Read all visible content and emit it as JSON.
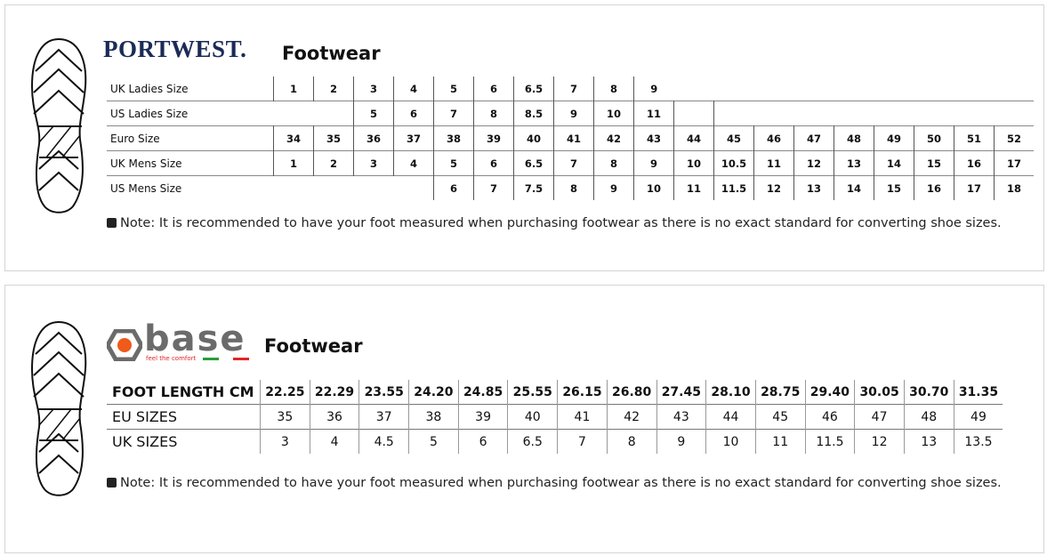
{
  "portwest": {
    "brand": "PORTWEST.",
    "title": "Footwear",
    "rows": [
      {
        "label": "UK Ladies Size",
        "values": [
          "1",
          "2",
          "3",
          "4",
          "5",
          "6",
          "6.5",
          "7",
          "8",
          "9",
          "",
          "",
          "",
          "",
          "",
          "",
          "",
          "",
          ""
        ]
      },
      {
        "label": "US Ladies Size",
        "values": [
          "",
          "",
          "5",
          "6",
          "7",
          "8",
          "8.5",
          "9",
          "10",
          "11",
          "",
          "",
          "",
          "",
          "",
          "",
          "",
          "",
          ""
        ]
      },
      {
        "label": "Euro Size",
        "values": [
          "34",
          "35",
          "36",
          "37",
          "38",
          "39",
          "40",
          "41",
          "42",
          "43",
          "44",
          "45",
          "46",
          "47",
          "48",
          "49",
          "50",
          "51",
          "52"
        ]
      },
      {
        "label": "UK Mens Size",
        "values": [
          "1",
          "2",
          "3",
          "4",
          "5",
          "6",
          "6.5",
          "7",
          "8",
          "9",
          "10",
          "10.5",
          "11",
          "12",
          "13",
          "14",
          "15",
          "16",
          "17"
        ]
      },
      {
        "label": "US Mens Size",
        "values": [
          "",
          "",
          "",
          "",
          "6",
          "7",
          "7.5",
          "8",
          "9",
          "10",
          "11",
          "11.5",
          "12",
          "13",
          "14",
          "15",
          "16",
          "17",
          "18"
        ]
      }
    ],
    "note": "Note: It is recommended to have your foot measured when purchasing footwear as there is no exact standard for converting shoe sizes."
  },
  "base": {
    "brand": "base",
    "tagline": "feel the comfort",
    "title": "Footwear",
    "rows": [
      {
        "label": "FOOT LENGTH CM",
        "values": [
          "22.25",
          "22.29",
          "23.55",
          "24.20",
          "24.85",
          "25.55",
          "26.15",
          "26.80",
          "27.45",
          "28.10",
          "28.75",
          "29.40",
          "30.05",
          "30.70",
          "31.35"
        ]
      },
      {
        "label": "EU SIZES",
        "values": [
          "35",
          "36",
          "37",
          "38",
          "39",
          "40",
          "41",
          "42",
          "43",
          "44",
          "45",
          "46",
          "47",
          "48",
          "49"
        ]
      },
      {
        "label": "UK SIZES",
        "values": [
          "3",
          "4",
          "4.5",
          "5",
          "6",
          "6.5",
          "7",
          "8",
          "9",
          "10",
          "11",
          "11.5",
          "12",
          "13",
          "13.5"
        ]
      }
    ],
    "note": "Note: It is recommended to have your foot measured when purchasing footwear as there is no exact standard for converting shoe sizes.",
    "colors": {
      "logo_orange": "#f05a1a",
      "logo_gray": "#6b6b6b",
      "green": "#2a9d3a",
      "red": "#e0262b"
    }
  },
  "icons": {
    "sole": "shoe-sole-icon",
    "note": "checkbox-icon"
  }
}
